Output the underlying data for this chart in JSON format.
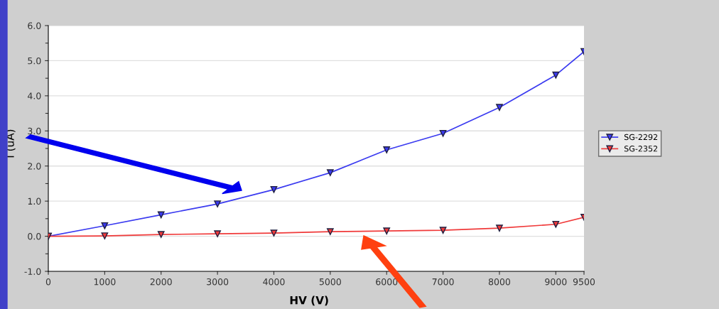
{
  "chart_data": {
    "type": "line",
    "xlabel": "HV (V)",
    "ylabel": "I (uA)",
    "x": [
      0,
      1000,
      2000,
      3000,
      4000,
      5000,
      6000,
      7000,
      8000,
      9000,
      9500
    ],
    "series": [
      {
        "name": "SG-2292",
        "color": "#3a3af0",
        "values": [
          0.0,
          0.3,
          0.61,
          0.92,
          1.33,
          1.81,
          2.46,
          2.93,
          3.67,
          4.59,
          5.26
        ]
      },
      {
        "name": "SG-2352",
        "color": "#f03a3a",
        "values": [
          0.0,
          0.01,
          0.05,
          0.07,
          0.09,
          0.13,
          0.15,
          0.17,
          0.23,
          0.34,
          0.54
        ]
      }
    ],
    "xlim": [
      0,
      9500
    ],
    "xticks": [
      0,
      1000,
      2000,
      3000,
      4000,
      5000,
      6000,
      7000,
      8000,
      9000,
      9500
    ],
    "ylim": [
      -1.0,
      6.0
    ],
    "yticks": [
      {
        "value": -1,
        "label": "-1.0"
      },
      {
        "value": 0,
        "label": "0.0"
      },
      {
        "value": 1,
        "label": "1.0"
      },
      {
        "value": 2,
        "label": "2.0"
      },
      {
        "value": 3,
        "label": "3.0"
      },
      {
        "value": 4,
        "label": "4.0"
      },
      {
        "value": 5,
        "label": "5.0"
      },
      {
        "value": 6,
        "label": "6.0"
      }
    ],
    "grid": "y",
    "legend": "right",
    "marker": "triangle",
    "line_style": "solid"
  }
}
